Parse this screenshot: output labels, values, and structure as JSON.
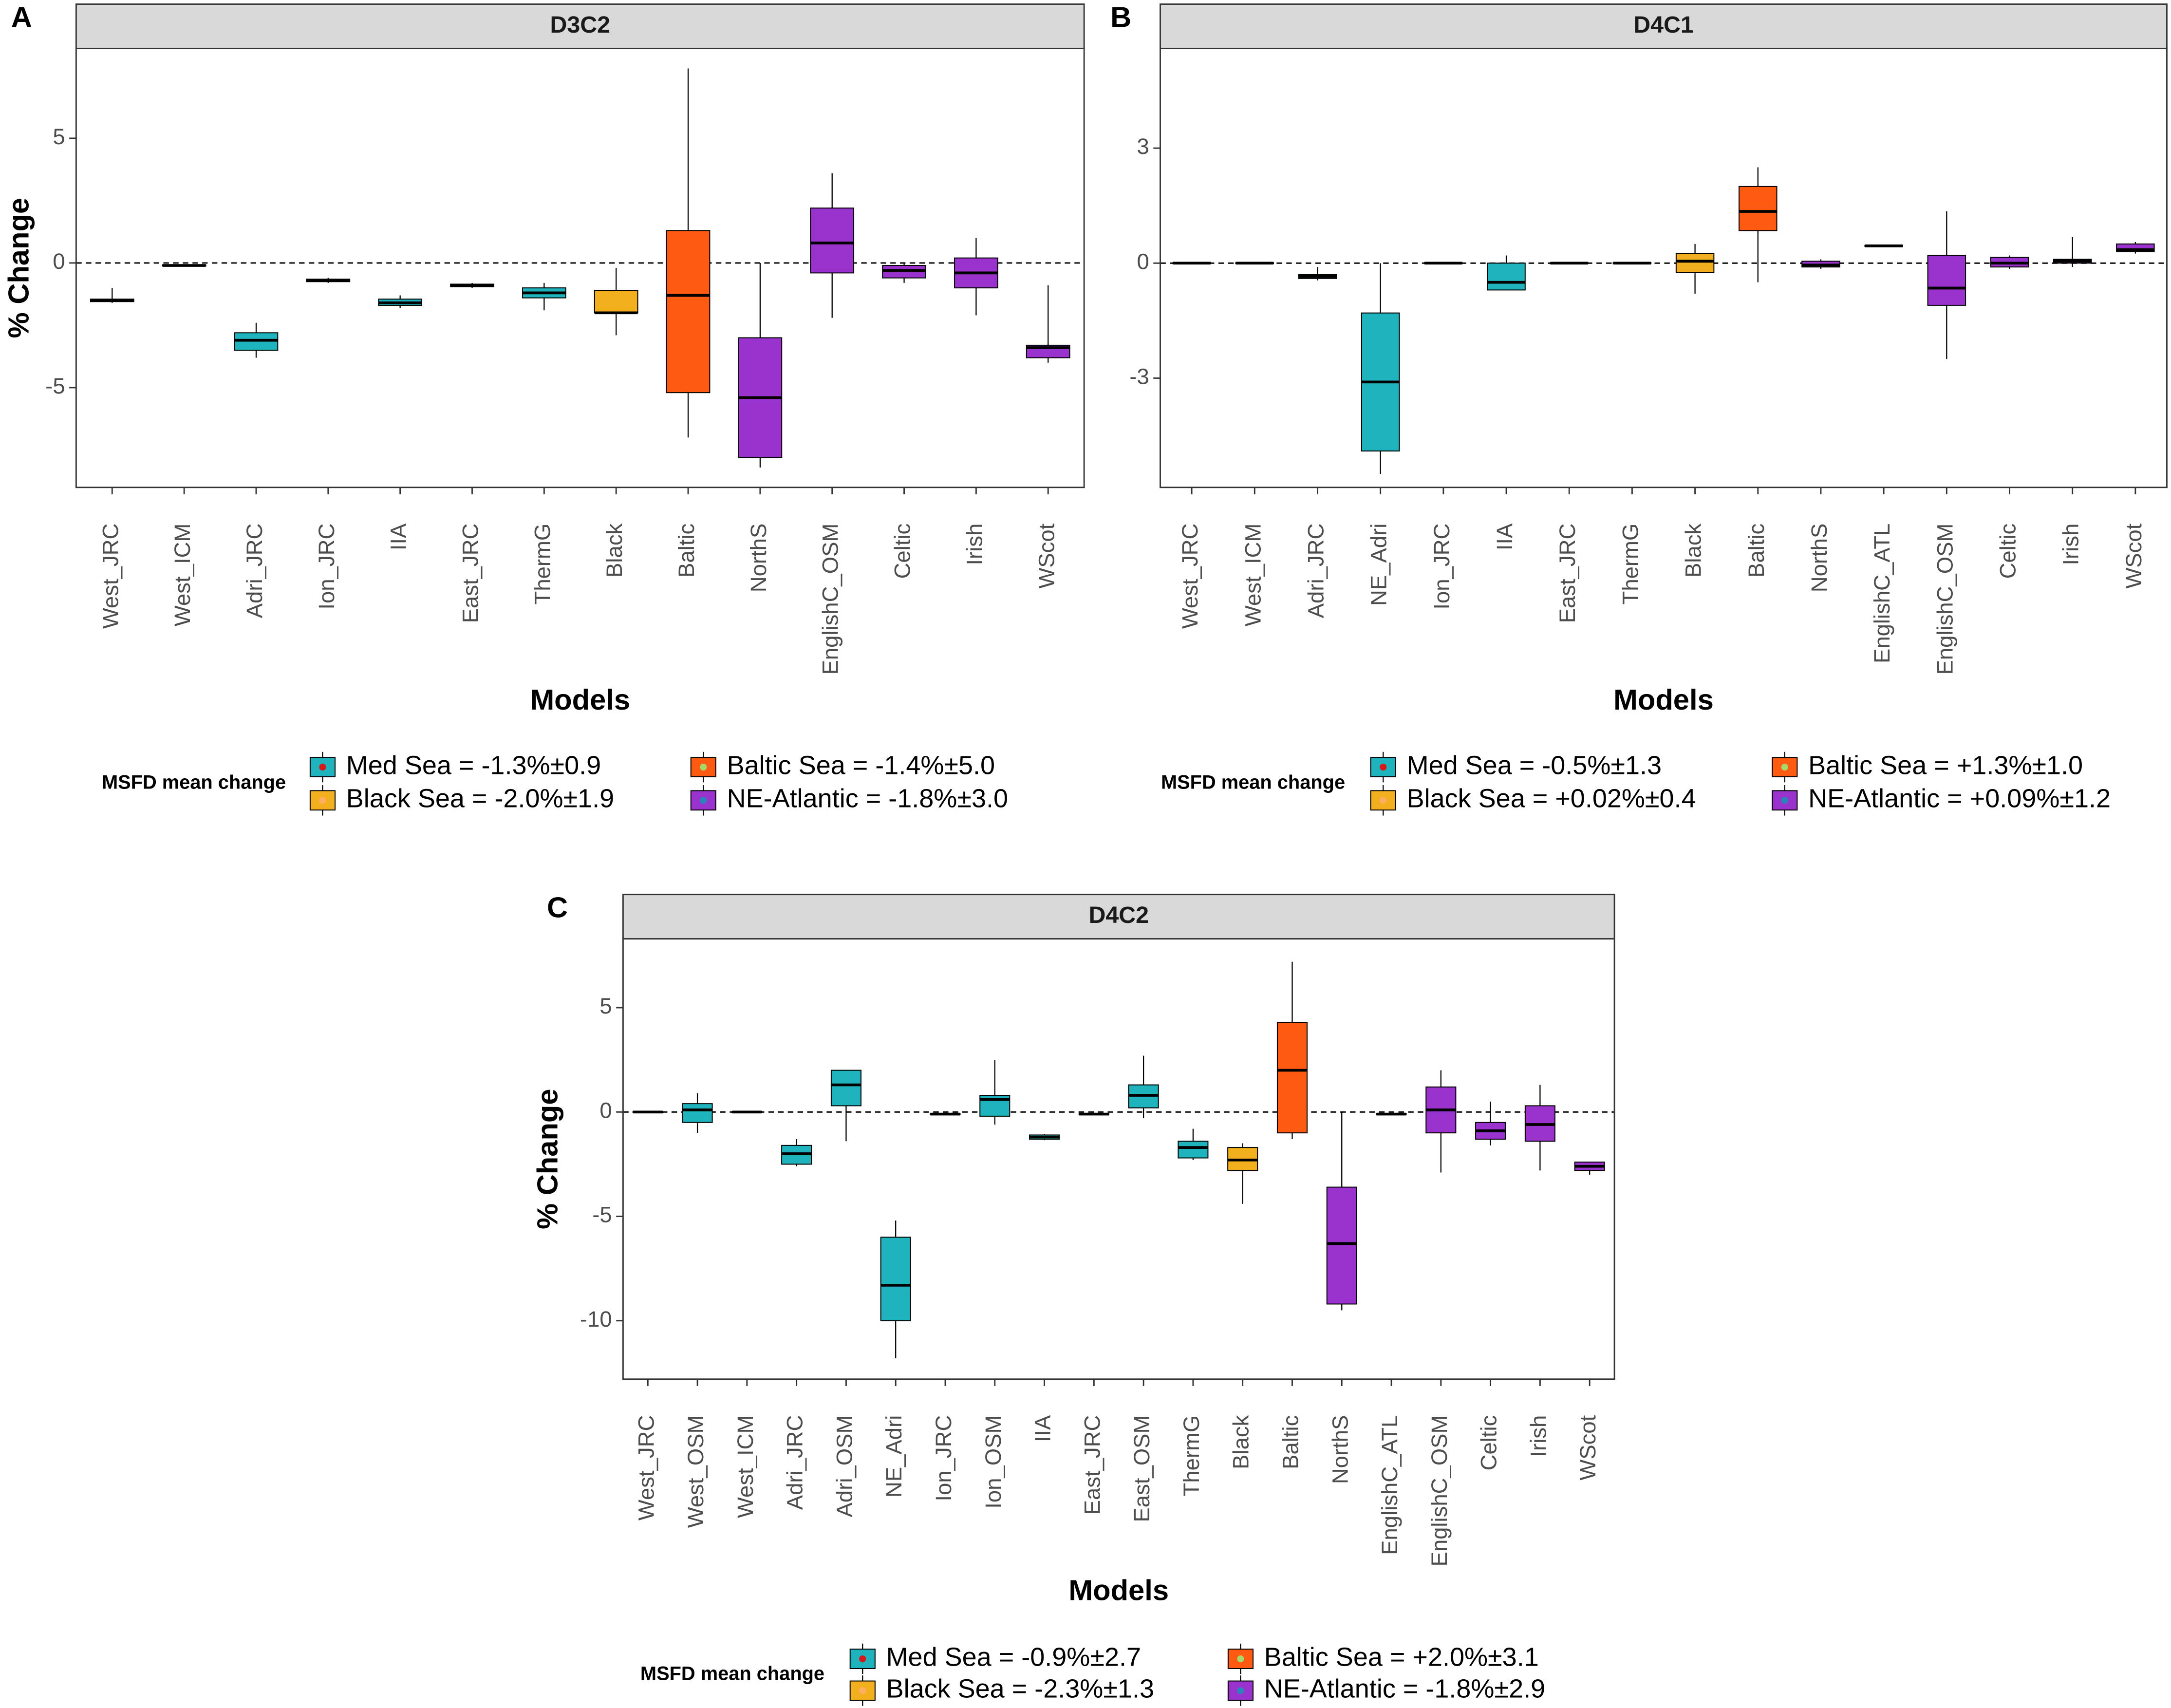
{
  "chart_data": [
    {
      "type": "box",
      "panel": "A",
      "title": "D3C2",
      "xlabel": "Models",
      "ylabel": "% Change",
      "categories": [
        "West_JRC",
        "West_ICM",
        "Adri_JRC",
        "Ion_JRC",
        "IIA",
        "East_JRC",
        "ThermG",
        "Black",
        "Baltic",
        "NorthS",
        "EnglishC_OSM",
        "Celtic",
        "Irish",
        "WScot"
      ],
      "boxes": [
        {
          "low": -1.6,
          "q1": -1.55,
          "median": -1.5,
          "q3": -1.45,
          "high": -1.0
        },
        {
          "low": -0.15,
          "q1": -0.12,
          "median": -0.1,
          "q3": -0.08,
          "high": -0.05
        },
        {
          "low": -3.8,
          "q1": -3.5,
          "median": -3.1,
          "q3": -2.8,
          "high": -2.4
        },
        {
          "low": -0.8,
          "q1": -0.75,
          "median": -0.7,
          "q3": -0.65,
          "high": -0.6
        },
        {
          "low": -1.8,
          "q1": -1.7,
          "median": -1.6,
          "q3": -1.45,
          "high": -1.3
        },
        {
          "low": -1.0,
          "q1": -0.95,
          "median": -0.9,
          "q3": -0.85,
          "high": -0.8
        },
        {
          "low": -1.9,
          "q1": -1.4,
          "median": -1.2,
          "q3": -1.0,
          "high": -0.8
        },
        {
          "low": -2.9,
          "q1": -2.0,
          "median": -2.0,
          "q3": -1.1,
          "high": -0.2
        },
        {
          "low": -7.0,
          "q1": -5.2,
          "median": -1.3,
          "q3": 1.3,
          "high": 7.8
        },
        {
          "low": -8.2,
          "q1": -7.8,
          "median": -5.4,
          "q3": -3.0,
          "high": 0
        },
        {
          "low": -2.2,
          "q1": -0.4,
          "median": 0.8,
          "q3": 2.2,
          "high": 3.6
        },
        {
          "low": -0.8,
          "q1": -0.6,
          "median": -0.3,
          "q3": -0.1,
          "high": 0
        },
        {
          "low": -2.1,
          "q1": -1.0,
          "median": -0.4,
          "q3": 0.2,
          "high": 1.0
        },
        {
          "low": -4.0,
          "q1": -3.8,
          "median": -3.4,
          "q3": -3.3,
          "high": -0.9
        }
      ],
      "box_colors": [
        "#1fb3be",
        "#1fb3be",
        "#1fb3be",
        "#1fb3be",
        "#1fb3be",
        "#1fb3be",
        "#1fb3be",
        "#f2b01e",
        "#ff5a12",
        "#9a32cd",
        "#9a32cd",
        "#9a32cd",
        "#9a32cd",
        "#9a32cd"
      ],
      "ylim": [
        -9.0,
        8.6
      ],
      "yticks": [
        -5,
        0,
        5
      ],
      "zero_line": true,
      "legend_title": "MSFD mean change",
      "legend": [
        {
          "label": "Med Sea = -1.3%±0.9",
          "color": "#1fb3be",
          "point_color": "#d7191c"
        },
        {
          "label": "Black Sea = -2.0%±1.9",
          "color": "#f2b01e",
          "point_color": "#fdae61"
        },
        {
          "label": "Baltic Sea = -1.4%±5.0",
          "color": "#ff5a12",
          "point_color": "#a6d96a"
        },
        {
          "label": "NE-Atlantic = -1.8%±3.0",
          "color": "#9a32cd",
          "point_color": "#2b83ba"
        }
      ]
    },
    {
      "type": "box",
      "panel": "B",
      "title": "D4C1",
      "xlabel": "Models",
      "ylabel": "% Change",
      "categories": [
        "West_JRC",
        "West_ICM",
        "Adri_JRC",
        "NE_Adri",
        "Ion_JRC",
        "IIA",
        "East_JRC",
        "ThermG",
        "Black",
        "Baltic",
        "NorthS",
        "EnglishC_ATL",
        "EnglishC_OSM",
        "Celtic",
        "Irish",
        "WScot"
      ],
      "boxes": [
        {
          "low": -0.02,
          "q1": -0.01,
          "median": 0,
          "q3": 0.01,
          "high": 0.02
        },
        {
          "low": -0.02,
          "q1": -0.01,
          "median": 0,
          "q3": 0.01,
          "high": 0.02
        },
        {
          "low": -0.45,
          "q1": -0.4,
          "median": -0.35,
          "q3": -0.3,
          "high": -0.1
        },
        {
          "low": -5.5,
          "q1": -4.9,
          "median": -3.1,
          "q3": -1.3,
          "high": 0
        },
        {
          "low": -0.02,
          "q1": -0.01,
          "median": 0,
          "q3": 0.01,
          "high": 0.02
        },
        {
          "low": -0.7,
          "q1": -0.7,
          "median": -0.5,
          "q3": 0,
          "high": 0.2
        },
        {
          "low": -0.02,
          "q1": -0.01,
          "median": 0,
          "q3": 0.01,
          "high": 0.02
        },
        {
          "low": -0.02,
          "q1": -0.01,
          "median": 0,
          "q3": 0.01,
          "high": 0.02
        },
        {
          "low": -0.8,
          "q1": -0.25,
          "median": 0.05,
          "q3": 0.25,
          "high": 0.5
        },
        {
          "low": -0.5,
          "q1": 0.85,
          "median": 1.35,
          "q3": 2.0,
          "high": 2.5
        },
        {
          "low": -0.15,
          "q1": -0.1,
          "median": -0.05,
          "q3": 0.05,
          "high": 0.1
        },
        {
          "low": 0.43,
          "q1": 0.44,
          "median": 0.45,
          "q3": 0.46,
          "high": 0.47
        },
        {
          "low": -2.5,
          "q1": -1.1,
          "median": -0.65,
          "q3": 0.2,
          "high": 1.35
        },
        {
          "low": -0.15,
          "q1": -0.1,
          "median": 0,
          "q3": 0.15,
          "high": 0.2
        },
        {
          "low": -0.1,
          "q1": 0,
          "median": 0.05,
          "q3": 0.1,
          "high": 0.68
        },
        {
          "low": 0.25,
          "q1": 0.3,
          "median": 0.35,
          "q3": 0.5,
          "high": 0.55
        }
      ],
      "box_colors": [
        "#1fb3be",
        "#1fb3be",
        "#1fb3be",
        "#1fb3be",
        "#1fb3be",
        "#1fb3be",
        "#1fb3be",
        "#1fb3be",
        "#f2b01e",
        "#ff5a12",
        "#9a32cd",
        "#9a32cd",
        "#9a32cd",
        "#9a32cd",
        "#9a32cd",
        "#9a32cd"
      ],
      "ylim": [
        -5.85,
        5.6
      ],
      "yticks": [
        -3,
        0,
        3
      ],
      "zero_line": true,
      "legend_title": "MSFD mean change",
      "legend": [
        {
          "label": "Med Sea = -0.5%±1.3",
          "color": "#1fb3be",
          "point_color": "#d7191c"
        },
        {
          "label": "Black Sea = +0.02%±0.4",
          "color": "#f2b01e",
          "point_color": "#fdae61"
        },
        {
          "label": "Baltic Sea = +1.3%±1.0",
          "color": "#ff5a12",
          "point_color": "#a6d96a"
        },
        {
          "label": "NE-Atlantic = +0.09%±1.2",
          "color": "#9a32cd",
          "point_color": "#2b83ba"
        }
      ]
    },
    {
      "type": "box",
      "panel": "C",
      "title": "D4C2",
      "xlabel": "Models",
      "ylabel": "% Change",
      "categories": [
        "West_JRC",
        "West_OSM",
        "West_ICM",
        "Adri_JRC",
        "Adri_OSM",
        "NE_Adri",
        "Ion_JRC",
        "Ion_OSM",
        "IIA",
        "East_JRC",
        "East_OSM",
        "ThermG",
        "Black",
        "Baltic",
        "NorthS",
        "EnglishC_ATL",
        "EnglishC_OSM",
        "Celtic",
        "Irish",
        "WScot"
      ],
      "boxes": [
        {
          "low": -0.05,
          "q1": -0.02,
          "median": 0,
          "q3": 0.02,
          "high": 0.05
        },
        {
          "low": -1.0,
          "q1": -0.5,
          "median": 0.1,
          "q3": 0.4,
          "high": 0.9
        },
        {
          "low": -0.05,
          "q1": -0.02,
          "median": 0,
          "q3": 0.02,
          "high": 0.05
        },
        {
          "low": -2.6,
          "q1": -2.5,
          "median": -2.0,
          "q3": -1.6,
          "high": -1.3
        },
        {
          "low": -1.4,
          "q1": 0.3,
          "median": 1.3,
          "q3": 2.0,
          "high": 2.0
        },
        {
          "low": -11.8,
          "q1": -10.0,
          "median": -8.3,
          "q3": -6.0,
          "high": -5.2
        },
        {
          "low": -0.15,
          "q1": -0.12,
          "median": -0.1,
          "q3": -0.08,
          "high": -0.05
        },
        {
          "low": -0.6,
          "q1": -0.2,
          "median": 0.6,
          "q3": 0.8,
          "high": 2.5
        },
        {
          "low": -1.35,
          "q1": -1.3,
          "median": -1.2,
          "q3": -1.1,
          "high": -1.05
        },
        {
          "low": -0.15,
          "q1": -0.12,
          "median": -0.1,
          "q3": -0.08,
          "high": -0.05
        },
        {
          "low": -0.3,
          "q1": 0.2,
          "median": 0.8,
          "q3": 1.3,
          "high": 2.7
        },
        {
          "low": -2.3,
          "q1": -2.2,
          "median": -1.7,
          "q3": -1.4,
          "high": -0.8
        },
        {
          "low": -4.4,
          "q1": -2.8,
          "median": -2.3,
          "q3": -1.7,
          "high": -1.5
        },
        {
          "low": -1.3,
          "q1": -1.0,
          "median": 2.0,
          "q3": 4.3,
          "high": 7.2
        },
        {
          "low": -9.5,
          "q1": -9.2,
          "median": -6.3,
          "q3": -3.6,
          "high": 0
        },
        {
          "low": -0.15,
          "q1": -0.12,
          "median": -0.1,
          "q3": -0.08,
          "high": -0.05
        },
        {
          "low": -2.9,
          "q1": -1.0,
          "median": 0.1,
          "q3": 1.2,
          "high": 2.0
        },
        {
          "low": -1.6,
          "q1": -1.3,
          "median": -0.9,
          "q3": -0.5,
          "high": 0.5
        },
        {
          "low": -2.8,
          "q1": -1.4,
          "median": -0.6,
          "q3": 0.3,
          "high": 1.3
        },
        {
          "low": -3.0,
          "q1": -2.8,
          "median": -2.6,
          "q3": -2.4,
          "high": -2.4
        }
      ],
      "box_colors": [
        "#1fb3be",
        "#1fb3be",
        "#1fb3be",
        "#1fb3be",
        "#1fb3be",
        "#1fb3be",
        "#1fb3be",
        "#1fb3be",
        "#1fb3be",
        "#1fb3be",
        "#1fb3be",
        "#1fb3be",
        "#f2b01e",
        "#ff5a12",
        "#9a32cd",
        "#9a32cd",
        "#9a32cd",
        "#9a32cd",
        "#9a32cd",
        "#9a32cd"
      ],
      "ylim": [
        -12.8,
        8.3
      ],
      "yticks": [
        -10,
        -5,
        0,
        5
      ],
      "zero_line": true,
      "legend_title": "MSFD mean change",
      "legend": [
        {
          "label": "Med Sea = -0.9%±2.7",
          "color": "#1fb3be",
          "point_color": "#d7191c"
        },
        {
          "label": "Black Sea = -2.3%±1.3",
          "color": "#f2b01e",
          "point_color": "#fdae61"
        },
        {
          "label": "Baltic Sea = +2.0%±3.1",
          "color": "#ff5a12",
          "point_color": "#a6d96a"
        },
        {
          "label": "NE-Atlantic = -1.8%±2.9",
          "color": "#9a32cd",
          "point_color": "#2b83ba"
        }
      ]
    }
  ]
}
